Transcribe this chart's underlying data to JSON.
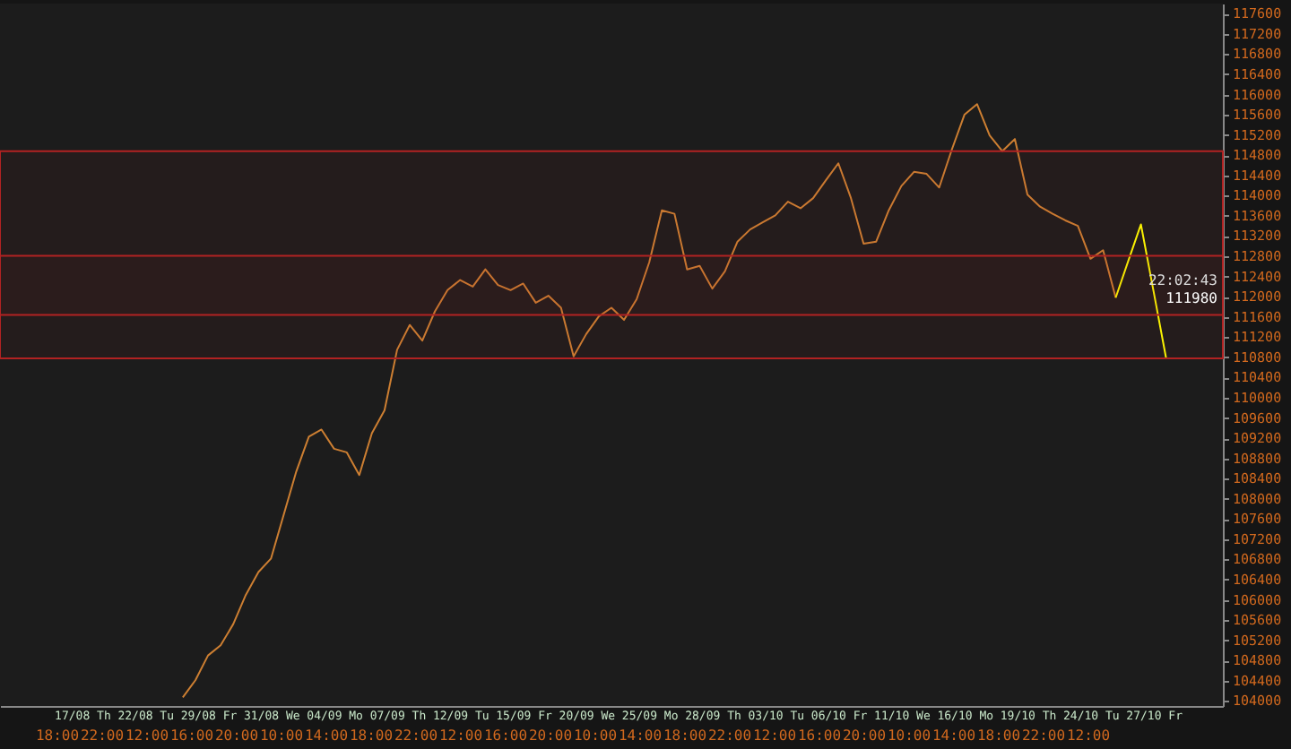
{
  "chart_data": {
    "type": "line",
    "categories": [
      null,
      null,
      null,
      null,
      null,
      null,
      "17/08 Th",
      null,
      null,
      null,
      null,
      "22/08 Tu",
      null,
      null,
      null,
      null,
      "29/08 Fr",
      null,
      null,
      null,
      null,
      "31/08 We",
      null,
      null,
      null,
      null,
      "04/09 Mo",
      null,
      null,
      null,
      null,
      "07/09 Th",
      null,
      null,
      null,
      null,
      "12/09 Tu",
      null,
      null,
      null,
      null,
      "15/09 Fr",
      null,
      null,
      null,
      null,
      "20/09 We",
      null,
      null,
      null,
      null,
      "25/09 Mo",
      null,
      null,
      null,
      null,
      "28/09 Th",
      null,
      null,
      null,
      null,
      "03/10 Tu",
      null,
      null,
      null,
      null,
      "06/10 Fr",
      null,
      null,
      null,
      null,
      "11/10 We",
      null,
      null,
      null,
      null,
      "16/10 Mo",
      null,
      null,
      null,
      null,
      "19/10 Th",
      null,
      null,
      null,
      null,
      "24/10 Tu",
      null,
      null,
      null,
      null,
      "27/10 Fr",
      null,
      null,
      null,
      null,
      null
    ],
    "series": [
      {
        "color": "#cd7f32",
        "values": [
          null,
          null,
          null,
          null,
          null,
          null,
          null,
          null,
          null,
          null,
          null,
          null,
          null,
          null,
          104070,
          104410,
          104900,
          105100,
          105520,
          106100,
          106550,
          106820,
          107680,
          108540,
          109230,
          109370,
          108990,
          108920,
          108470,
          109300,
          109750,
          110950,
          111440,
          111130,
          111710,
          112130,
          112330,
          112200,
          112540,
          112230,
          112130,
          112260,
          111880,
          112020,
          111780,
          110820,
          111260,
          111610,
          111780,
          111540,
          111950,
          112680,
          113710,
          113640,
          112540,
          112610,
          112160,
          112500,
          113090,
          113330,
          113470,
          113610,
          113880,
          113750,
          113950,
          114300,
          114640,
          113950,
          113050,
          113090,
          113710,
          114190,
          114470,
          114430,
          114160,
          114910,
          115600,
          115810,
          115190,
          114880,
          115120,
          114020,
          113780,
          113640,
          113510,
          113400,
          112750,
          112920,
          111980,
          null,
          null,
          null,
          null,
          null,
          null,
          null,
          null
        ]
      },
      {
        "color": "#ffff00",
        "values": [
          null,
          null,
          null,
          null,
          null,
          null,
          null,
          null,
          null,
          null,
          null,
          null,
          null,
          null,
          null,
          null,
          null,
          null,
          null,
          null,
          null,
          null,
          null,
          null,
          null,
          null,
          null,
          null,
          null,
          null,
          null,
          null,
          null,
          null,
          null,
          null,
          null,
          null,
          null,
          null,
          null,
          null,
          null,
          null,
          null,
          null,
          null,
          null,
          null,
          null,
          null,
          null,
          null,
          null,
          null,
          null,
          null,
          null,
          null,
          null,
          null,
          null,
          null,
          null,
          null,
          null,
          null,
          null,
          null,
          null,
          null,
          null,
          null,
          null,
          null,
          null,
          null,
          null,
          null,
          null,
          null,
          null,
          null,
          null,
          null,
          null,
          null,
          null,
          111980,
          112710,
          113430,
          112110,
          110780,
          null,
          null,
          null,
          null
        ]
      }
    ],
    "ylim": [
      103900,
      117800
    ],
    "yticks": [
      104000,
      104400,
      104800,
      105200,
      105600,
      106000,
      106400,
      106800,
      107200,
      107600,
      108000,
      108400,
      108800,
      109200,
      109600,
      110000,
      110400,
      110800,
      111200,
      111600,
      112000,
      112400,
      112800,
      113200,
      113600,
      114000,
      114400,
      114800,
      115200,
      115600,
      116000,
      116400,
      116800,
      117200,
      117600
    ],
    "bands": [
      {
        "axis": "y",
        "from": 110780,
        "to": 112810,
        "color": "#b22222"
      },
      {
        "axis": "y",
        "from": 111640,
        "to": 114880,
        "color": "#b22222"
      }
    ],
    "annotations": [
      "22:02:43",
      "111980",
      "18:00",
      "22:00",
      "12:00",
      "16:00",
      "20:00",
      "10:00",
      "14:00",
      "18:00",
      "22:00",
      "12:00",
      "16:00",
      "20:00",
      "10:00",
      "14:00",
      "18:00",
      "22:00",
      "12:00",
      "16:00",
      "20:00",
      "10:00",
      "14:00",
      "18:00",
      "22:00",
      "12:00"
    ]
  }
}
